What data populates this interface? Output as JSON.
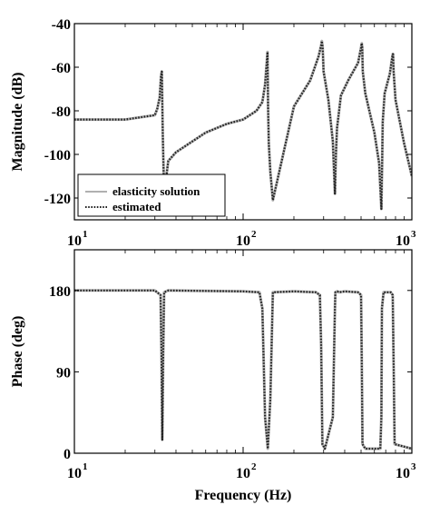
{
  "chart_data": [
    {
      "type": "line",
      "title": "",
      "xlabel": "",
      "ylabel": "Magnitude (dB)",
      "xscale": "log",
      "xlim": [
        10,
        1000
      ],
      "ylim": [
        -130,
        -40
      ],
      "yticks": [
        -40,
        -60,
        -80,
        -100,
        -120
      ],
      "xticks": [
        {
          "base": "10",
          "exp": "1"
        },
        {
          "base": "10",
          "exp": "2"
        },
        {
          "base": "10",
          "exp": "3"
        }
      ],
      "grid": false,
      "legend": {
        "position": "bottom-left"
      },
      "series": [
        {
          "name": "elasticity solution",
          "color": "#b0b0b0",
          "style": "solid"
        },
        {
          "name": "estimated",
          "color": "#222222",
          "style": "dotted"
        }
      ],
      "x": [
        10,
        20,
        30,
        31,
        32,
        32.6,
        33,
        33.4,
        34,
        36,
        40,
        60,
        80,
        100,
        120,
        130,
        135,
        138,
        139.5,
        140.5,
        142,
        145,
        150,
        200,
        250,
        280,
        290,
        293,
        296,
        300,
        320,
        340,
        350,
        355,
        360,
        380,
        420,
        480,
        500,
        505,
        508,
        512,
        530,
        600,
        640,
        660,
        666,
        672,
        690,
        740,
        760,
        770,
        774,
        780,
        800,
        900,
        1000
      ],
      "y": [
        -84,
        -84,
        -82,
        -79,
        -74,
        -64,
        -62,
        -90,
        -118,
        -103,
        -99,
        -90,
        -86,
        -84,
        -80,
        -76,
        -68,
        -58,
        -53,
        -78,
        -95,
        -108,
        -121,
        -78,
        -66,
        -55,
        -50,
        -48,
        -51,
        -62,
        -75,
        -94,
        -118,
        -100,
        -88,
        -73,
        -66,
        -58,
        -51,
        -49,
        -51,
        -62,
        -72,
        -90,
        -104,
        -125,
        -105,
        -85,
        -72,
        -63,
        -57,
        -54,
        -54,
        -62,
        -75,
        -95,
        -110
      ]
    },
    {
      "type": "line",
      "title": "",
      "xlabel": "Frequency (Hz)",
      "ylabel": "Phase (deg)",
      "xscale": "log",
      "xlim": [
        10,
        1000
      ],
      "ylim": [
        0,
        225
      ],
      "yticks": [
        0,
        90,
        180
      ],
      "xticks": [
        {
          "base": "10",
          "exp": "1"
        },
        {
          "base": "10",
          "exp": "2"
        },
        {
          "base": "10",
          "exp": "3"
        }
      ],
      "grid": false,
      "series": [
        {
          "name": "elasticity solution",
          "color": "#b0b0b0",
          "style": "solid"
        },
        {
          "name": "estimated",
          "color": "#222222",
          "style": "dotted"
        }
      ],
      "x": [
        10,
        30,
        32.4,
        32.8,
        33.2,
        33.6,
        34,
        36,
        100,
        125,
        130,
        135,
        140,
        145,
        150,
        200,
        270,
        285,
        290,
        295,
        305,
        310,
        340,
        350,
        352,
        362,
        370,
        400,
        480,
        500,
        505,
        510,
        530,
        650,
        660,
        665,
        680,
        700,
        720,
        750,
        770,
        780,
        790,
        1000
      ],
      "y": [
        180,
        180,
        175,
        110,
        15,
        110,
        178,
        180,
        179,
        178,
        160,
        40,
        5,
        60,
        178,
        179,
        178,
        175,
        120,
        10,
        5,
        10,
        40,
        160,
        178,
        179,
        178,
        179,
        178,
        175,
        100,
        10,
        5,
        5,
        40,
        160,
        178,
        178,
        178,
        178,
        175,
        100,
        10,
        5
      ]
    }
  ]
}
